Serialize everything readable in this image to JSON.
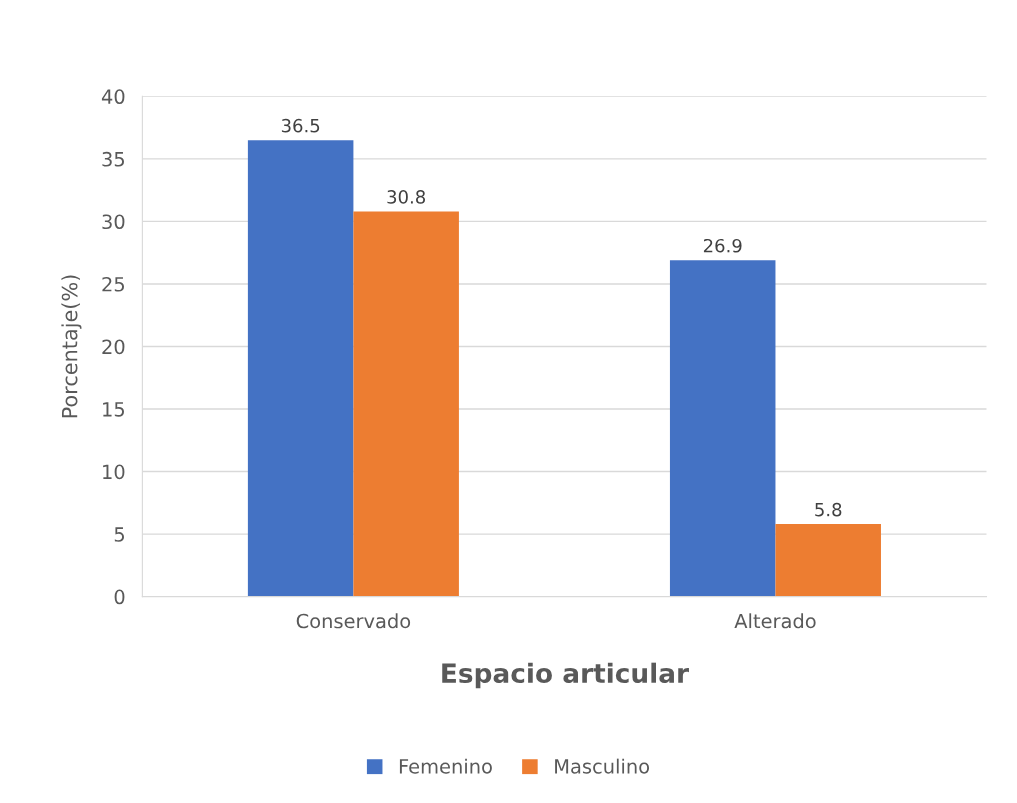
{
  "chart_data": {
    "type": "bar",
    "xlabel": "Espacio articular",
    "ylabel": "Porcentaje(%)",
    "categories": [
      "Conservado",
      "Alterado"
    ],
    "series": [
      {
        "name": "Femenino",
        "color": "#4472c4",
        "values": [
          36.5,
          26.9
        ]
      },
      {
        "name": "Masculino",
        "color": "#ed7d31",
        "values": [
          30.8,
          5.8
        ]
      }
    ],
    "ylim": [
      0,
      40
    ],
    "yticks": [
      0,
      5,
      10,
      15,
      20,
      25,
      30,
      35,
      40
    ],
    "grid": "y",
    "legend": "bottom",
    "data_labels": true
  }
}
